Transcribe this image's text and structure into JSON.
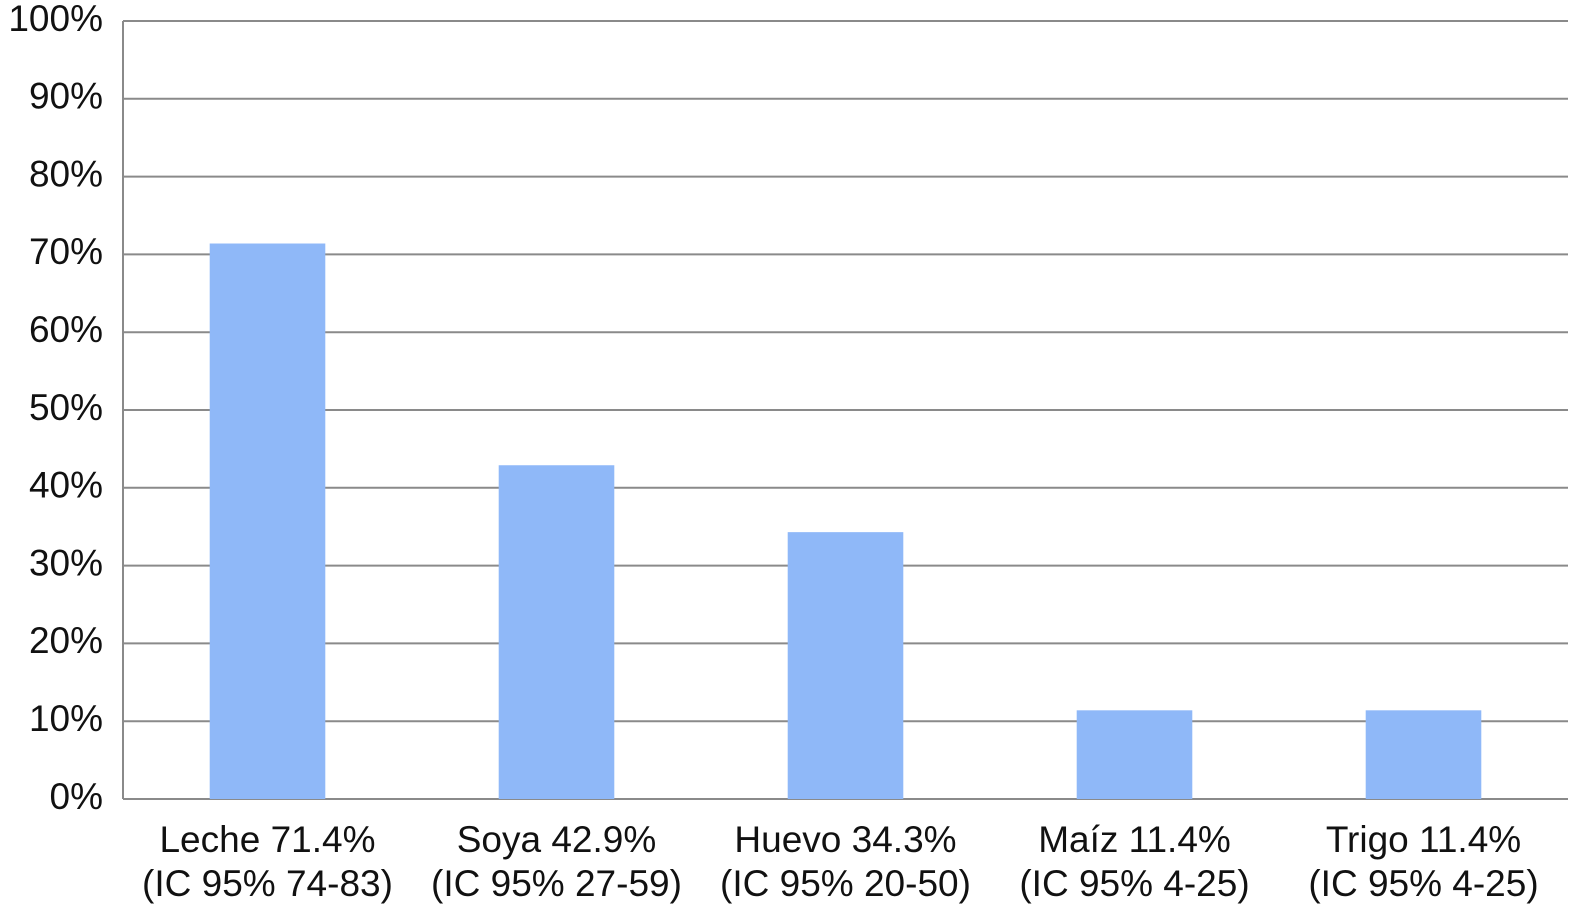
{
  "chart_data": {
    "type": "bar",
    "categories": [
      [
        "Leche 71.4%",
        "(IC 95% 74-83)"
      ],
      [
        "Soya 42.9%",
        "(IC 95% 27-59)"
      ],
      [
        "Huevo 34.3%",
        "(IC 95% 20-50)"
      ],
      [
        "Maíz 11.4%",
        "(IC 95% 4-25)"
      ],
      [
        "Trigo 11.4%",
        "(IC 95% 4-25)"
      ]
    ],
    "values": [
      71.4,
      42.9,
      34.3,
      11.4,
      11.4
    ],
    "color": "#8fb8f8",
    "ylim": [
      0,
      100
    ],
    "yticks": [
      {
        "value": 0,
        "label": "0%"
      },
      {
        "value": 10,
        "label": "10%"
      },
      {
        "value": 20,
        "label": "20%"
      },
      {
        "value": 30,
        "label": "30%"
      },
      {
        "value": 40,
        "label": "40%"
      },
      {
        "value": 50,
        "label": "50%"
      },
      {
        "value": 60,
        "label": "60%"
      },
      {
        "value": 70,
        "label": "70%"
      },
      {
        "value": 80,
        "label": "80%"
      },
      {
        "value": 90,
        "label": "90%"
      },
      {
        "value": 100,
        "label": "100%"
      }
    ],
    "grid": true
  }
}
